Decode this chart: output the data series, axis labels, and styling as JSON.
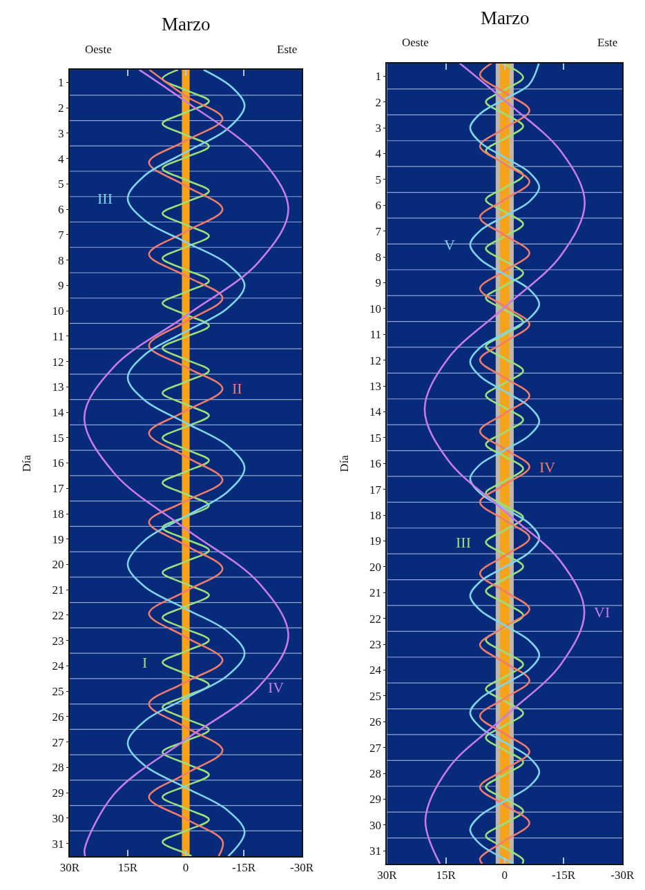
{
  "chart_data": [
    {
      "type": "line",
      "title": "Marzo",
      "ylabel": "Día",
      "annotations": [
        "Oeste",
        "Este"
      ],
      "xlim": [
        30,
        -30
      ],
      "xticks": [
        {
          "value": 30,
          "label": "30R"
        },
        {
          "value": 15,
          "label": "15R"
        },
        0,
        {
          "value": -15,
          "label": "-15R"
        },
        {
          "value": -30,
          "label": "-30R"
        }
      ],
      "ylim": [
        31.5,
        0.5
      ],
      "yticks": [
        1,
        2,
        3,
        4,
        5,
        6,
        7,
        8,
        9,
        10,
        11,
        12,
        13,
        14,
        15,
        16,
        17,
        18,
        19,
        20,
        21,
        22,
        23,
        24,
        25,
        26,
        27,
        28,
        29,
        30,
        31
      ],
      "legend": false,
      "ref_lines": [
        {
          "axis": "y",
          "value": 1.5
        },
        {
          "axis": "y",
          "value": 2.5
        },
        {
          "axis": "y",
          "value": 3.5
        },
        {
          "axis": "y",
          "value": 4.5
        },
        {
          "axis": "y",
          "value": 5.5
        },
        {
          "axis": "y",
          "value": 6.5
        },
        {
          "axis": "y",
          "value": 7.5
        },
        {
          "axis": "y",
          "value": 8.5
        },
        {
          "axis": "y",
          "value": 9.5
        },
        {
          "axis": "y",
          "value": 10.5
        },
        {
          "axis": "y",
          "value": 11.5
        },
        {
          "axis": "y",
          "value": 12.5
        },
        {
          "axis": "y",
          "value": 13.5
        },
        {
          "axis": "y",
          "value": 14.5
        },
        {
          "axis": "y",
          "value": 15.5
        },
        {
          "axis": "y",
          "value": 16.5
        },
        {
          "axis": "y",
          "value": 17.5
        },
        {
          "axis": "y",
          "value": 18.5
        },
        {
          "axis": "y",
          "value": 19.5
        },
        {
          "axis": "y",
          "value": 20.5
        },
        {
          "axis": "y",
          "value": 21.5
        },
        {
          "axis": "y",
          "value": 22.5
        },
        {
          "axis": "y",
          "value": 23.5
        },
        {
          "axis": "y",
          "value": 24.5
        },
        {
          "axis": "y",
          "value": 25.5
        },
        {
          "axis": "y",
          "value": 26.5
        },
        {
          "axis": "y",
          "value": 27.5
        },
        {
          "axis": "y",
          "value": 28.5
        },
        {
          "axis": "y",
          "value": 29.5
        },
        {
          "axis": "y",
          "value": 30.5
        }
      ],
      "bands": [
        {
          "axis": "x",
          "from": 1,
          "to": -1,
          "color": "#f5a31a"
        }
      ],
      "series": [
        {
          "name": "I",
          "color": "#9be07a",
          "x": [
            2,
            6,
            0,
            -6,
            0,
            6,
            0,
            -6,
            0,
            6,
            0,
            -6,
            0,
            6,
            0,
            -6,
            0,
            6,
            0,
            -6,
            0,
            6,
            0,
            -6,
            0,
            6,
            0,
            -6,
            0,
            6,
            0,
            -6,
            0,
            6,
            0,
            -6,
            0,
            6,
            0,
            -6,
            0,
            6,
            0,
            -6,
            0,
            6,
            0,
            -6,
            0,
            6,
            0,
            -6,
            0,
            6,
            0,
            -6,
            0,
            6,
            0,
            -6,
            0,
            6,
            0,
            -6,
            0,
            6,
            0,
            -6,
            0,
            6,
            0,
            -1.5
          ],
          "values": [
            0.5,
            0.85,
            1.3,
            1.74,
            2.18,
            2.62,
            3.07,
            3.51,
            3.95,
            4.39,
            4.84,
            5.28,
            5.72,
            6.16,
            6.61,
            7.05,
            7.49,
            7.93,
            8.38,
            8.82,
            9.26,
            9.7,
            10.15,
            10.59,
            11.03,
            11.47,
            11.92,
            12.36,
            12.8,
            13.24,
            13.69,
            14.13,
            14.57,
            15.01,
            15.46,
            15.9,
            16.34,
            16.78,
            17.23,
            17.67,
            18.11,
            18.55,
            19.0,
            19.44,
            19.88,
            20.32,
            20.77,
            21.21,
            21.65,
            22.09,
            22.54,
            22.98,
            23.42,
            23.86,
            24.31,
            24.75,
            25.19,
            25.63,
            26.08,
            26.52,
            26.96,
            27.4,
            27.85,
            28.29,
            28.73,
            29.17,
            29.62,
            30.06,
            30.5,
            30.94,
            31.39,
            31.5
          ]
        },
        {
          "name": "II",
          "color": "#f07c6c",
          "x": [
            9.4,
            0,
            -9.5,
            0,
            9.5,
            0,
            -9.5,
            0,
            9.5,
            0,
            -9.5,
            0,
            9.5,
            0,
            -9.5,
            0,
            9.5,
            0,
            -9.5,
            0,
            9.5,
            0,
            -9.5,
            0,
            9.5,
            0,
            -9.5,
            0,
            9.5,
            0,
            -9.5,
            0,
            9.5,
            0,
            -9.5,
            -8.5
          ],
          "values": [
            0.5,
            1.54,
            2.43,
            3.3,
            4.16,
            5.08,
            6.0,
            6.88,
            7.77,
            8.63,
            9.5,
            10.43,
            11.37,
            12.22,
            13.07,
            13.95,
            14.83,
            15.75,
            16.67,
            17.5,
            18.33,
            19.25,
            20.17,
            21.05,
            21.94,
            22.86,
            23.78,
            24.64,
            25.5,
            26.42,
            27.33,
            28.25,
            29.17,
            30.03,
            30.9,
            31.5
          ]
        },
        {
          "name": "III",
          "color": "#7fd4ee",
          "x": [
            -4.6,
            -12,
            -15.2,
            -10.7,
            0,
            10.6,
            15,
            10.6,
            0,
            -10.7,
            -15.2,
            -10.7,
            0,
            10.6,
            15,
            10.6,
            0,
            -10.7,
            -15.2,
            -10.7,
            0,
            10.6,
            15,
            10.6,
            0,
            -10.7,
            -15.2,
            -10.7,
            0,
            10.6,
            15,
            10.6,
            0,
            -10.7,
            -15.2,
            -11
          ],
          "values": [
            0.5,
            1.2,
            1.93,
            2.84,
            3.75,
            4.67,
            5.58,
            6.44,
            7.29,
            8.15,
            9.0,
            9.91,
            10.82,
            11.73,
            12.64,
            13.53,
            14.42,
            15.31,
            16.2,
            17.15,
            18.1,
            19.05,
            20.0,
            20.88,
            21.75,
            22.63,
            23.5,
            24.39,
            25.28,
            26.17,
            27.05,
            27.93,
            28.8,
            29.68,
            30.55,
            31.5
          ]
        },
        {
          "name": "IV",
          "color": "#c77ce8",
          "x": [
            12,
            0,
            -18.7,
            -26.5,
            -18.7,
            0,
            18.5,
            26.2,
            18.5,
            0,
            -18.7,
            -26.5,
            -18.7,
            0,
            18.5,
            26.1,
            26
          ],
          "values": [
            0.5,
            1.75,
            3.88,
            6.0,
            8.1,
            10.2,
            12.2,
            14.2,
            16.4,
            18.6,
            20.7,
            22.8,
            24.85,
            26.9,
            29.05,
            31.2,
            31.5
          ]
        }
      ]
    },
    {
      "type": "line",
      "title": "Marzo",
      "ylabel": "Día",
      "annotations": [
        "Oeste",
        "Este"
      ],
      "xlim": [
        30,
        -30
      ],
      "xticks": [
        {
          "value": 30,
          "label": "30R"
        },
        {
          "value": 15,
          "label": "15R"
        },
        0,
        {
          "value": -15,
          "label": "-15R"
        },
        {
          "value": -30,
          "label": "-30R"
        }
      ],
      "ylim": [
        31.5,
        0.5
      ],
      "yticks": [
        1,
        2,
        3,
        4,
        5,
        6,
        7,
        8,
        9,
        10,
        11,
        12,
        13,
        14,
        15,
        16,
        17,
        18,
        19,
        20,
        21,
        22,
        23,
        24,
        25,
        26,
        27,
        28,
        29,
        30,
        31
      ],
      "legend": false,
      "ref_lines": [
        {
          "axis": "y",
          "value": 1.5
        },
        {
          "axis": "y",
          "value": 2.5
        },
        {
          "axis": "y",
          "value": 3.5
        },
        {
          "axis": "y",
          "value": 4.5
        },
        {
          "axis": "y",
          "value": 5.5
        },
        {
          "axis": "y",
          "value": 6.5
        },
        {
          "axis": "y",
          "value": 7.5
        },
        {
          "axis": "y",
          "value": 8.5
        },
        {
          "axis": "y",
          "value": 9.5
        },
        {
          "axis": "y",
          "value": 10.5
        },
        {
          "axis": "y",
          "value": 11.5
        },
        {
          "axis": "y",
          "value": 12.5
        },
        {
          "axis": "y",
          "value": 13.5
        },
        {
          "axis": "y",
          "value": 14.5
        },
        {
          "axis": "y",
          "value": 15.5
        },
        {
          "axis": "y",
          "value": 16.5
        },
        {
          "axis": "y",
          "value": 17.5
        },
        {
          "axis": "y",
          "value": 18.5
        },
        {
          "axis": "y",
          "value": 19.5
        },
        {
          "axis": "y",
          "value": 20.5
        },
        {
          "axis": "y",
          "value": 21.5
        },
        {
          "axis": "y",
          "value": 22.5
        },
        {
          "axis": "y",
          "value": 23.5
        },
        {
          "axis": "y",
          "value": 24.5
        },
        {
          "axis": "y",
          "value": 25.5
        },
        {
          "axis": "y",
          "value": 26.5
        },
        {
          "axis": "y",
          "value": 27.5
        },
        {
          "axis": "y",
          "value": 28.5
        },
        {
          "axis": "y",
          "value": 29.5
        },
        {
          "axis": "y",
          "value": 30.5
        }
      ],
      "bands": [
        {
          "axis": "x",
          "from": 2.3,
          "to": -2.3,
          "color": "#bdb7ab"
        },
        {
          "axis": "x",
          "from": 1.2,
          "to": -1.2,
          "color": "#f5a31a"
        }
      ],
      "series": [
        {
          "name": "III",
          "color": "#9be07a",
          "x": [
            0.6,
            -4.7,
            0,
            4.8,
            0,
            -4.7,
            0,
            4.8,
            0,
            -4.7,
            0,
            4.8,
            0,
            -4.7,
            0,
            4.8,
            0,
            -4.7,
            0,
            4.8,
            0,
            -4.7,
            0,
            4.8,
            0,
            -4.7,
            0,
            4.8,
            0,
            -4.7,
            0,
            4.8,
            0,
            -4.7,
            0,
            4.8,
            0,
            -4.7,
            0,
            4.8,
            0,
            -4.7,
            0,
            4.8,
            0,
            -4.7,
            0,
            4.8,
            0,
            -4.7,
            0,
            4.8,
            0,
            -4.7,
            0,
            4.8,
            0,
            -4.7,
            0,
            4.8,
            0,
            -4.7,
            0,
            4.8,
            0,
            -4.7,
            -4.5
          ],
          "values": [
            0.5,
            1.05,
            1.53,
            2.0,
            2.47,
            2.94,
            3.42,
            3.89,
            4.37,
            4.84,
            5.32,
            5.79,
            6.26,
            6.73,
            7.21,
            7.68,
            8.16,
            8.63,
            9.11,
            9.58,
            10.05,
            10.52,
            11.0,
            11.47,
            11.94,
            12.41,
            12.89,
            13.36,
            13.84,
            14.31,
            14.79,
            15.26,
            15.73,
            16.2,
            16.68,
            17.15,
            17.63,
            18.1,
            18.58,
            19.05,
            19.52,
            19.99,
            20.47,
            20.94,
            21.41,
            21.88,
            22.36,
            22.83,
            23.31,
            23.78,
            24.26,
            24.73,
            25.2,
            25.67,
            26.15,
            26.62,
            27.1,
            27.57,
            28.05,
            28.52,
            28.99,
            29.46,
            29.94,
            30.41,
            30.88,
            31.35,
            31.5
          ]
        },
        {
          "name": "IV",
          "color": "#f07c6c",
          "x": [
            3.3,
            6.3,
            0,
            -6.3,
            0,
            6.3,
            0,
            -6.3,
            0,
            6.3,
            0,
            -6.3,
            0,
            6.3,
            0,
            -6.3,
            0,
            6.3,
            0,
            -6.3,
            0,
            6.3,
            0,
            -6.3,
            0,
            6.3,
            0,
            -6.3,
            0,
            6.3,
            0,
            -6.3,
            0,
            6.3,
            0,
            -6.3,
            0,
            6.3,
            0,
            -6.3,
            0,
            6.3,
            0,
            -6.3,
            0,
            6.3,
            5.7
          ],
          "values": [
            0.5,
            0.95,
            1.64,
            2.33,
            3.02,
            3.71,
            4.4,
            5.09,
            5.78,
            6.47,
            7.16,
            7.85,
            8.54,
            9.23,
            9.92,
            10.61,
            11.3,
            11.99,
            12.68,
            13.37,
            14.06,
            14.75,
            15.44,
            16.13,
            16.82,
            17.5,
            18.19,
            18.88,
            19.57,
            20.26,
            20.95,
            21.64,
            22.33,
            23.02,
            23.71,
            24.4,
            25.09,
            25.78,
            26.47,
            27.16,
            27.85,
            28.54,
            29.23,
            29.92,
            30.61,
            31.3,
            31.5
          ]
        },
        {
          "name": "V",
          "color": "#7fd4ee",
          "x": [
            -8.7,
            -6.2,
            0,
            6.2,
            8.8,
            6.2,
            0,
            -6.2,
            -8.8,
            -6.2,
            0,
            6.2,
            8.8,
            6.2,
            0,
            -6.2,
            -8.8,
            -6.2,
            0,
            6.2,
            8.8,
            6.2,
            0,
            -6.2,
            -8.8,
            -6.2,
            0,
            6.2,
            8.8,
            6.2,
            0,
            -6.2,
            -8.8,
            -6.2,
            0,
            6.2,
            8.8,
            6.2,
            0,
            -6.2,
            -8.8,
            -6.2,
            0,
            6.2,
            8.8,
            6.2,
            0,
            -6.2,
            -8.8,
            -6.2,
            0,
            6.2,
            8.8,
            6.2,
            0,
            -2.3
          ],
          "values": [
            0.5,
            1.33,
            1.89,
            2.45,
            3.0,
            3.57,
            4.15,
            4.72,
            5.3,
            5.87,
            6.42,
            6.98,
            7.53,
            8.1,
            8.68,
            9.25,
            9.83,
            10.39,
            10.95,
            11.5,
            12.06,
            12.63,
            13.21,
            13.79,
            14.36,
            14.92,
            15.48,
            16.03,
            16.59,
            17.16,
            17.74,
            18.32,
            18.89,
            19.45,
            20.01,
            20.57,
            21.12,
            21.69,
            22.27,
            22.85,
            23.42,
            23.98,
            24.54,
            25.1,
            25.65,
            26.22,
            26.8,
            27.38,
            27.95,
            28.51,
            29.07,
            29.63,
            30.18,
            30.75,
            31.32,
            31.5
          ]
        },
        {
          "name": "VI",
          "color": "#c77ce8",
          "x": [
            11.5,
            0,
            -14.4,
            -20.4,
            -14.4,
            0,
            14.4,
            20.4,
            14.4,
            0,
            -14.3,
            -20.3,
            -14.3,
            0,
            14.3,
            20.2,
            16.5
          ],
          "values": [
            0.5,
            1.95,
            3.93,
            5.9,
            7.93,
            9.95,
            11.93,
            13.9,
            15.88,
            17.85,
            19.8,
            21.75,
            23.78,
            25.8,
            27.8,
            29.8,
            31.5
          ]
        }
      ]
    }
  ]
}
